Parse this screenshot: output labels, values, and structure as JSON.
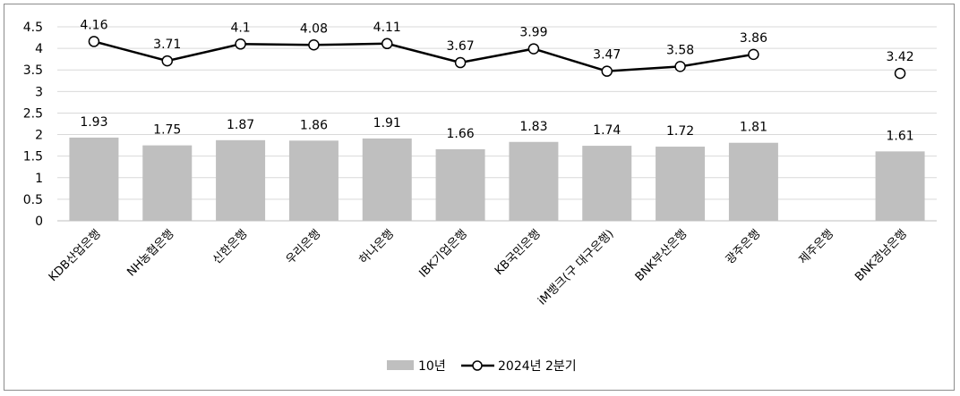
{
  "chart_data": {
    "type": "bar",
    "categories": [
      "KDB산업은행",
      "NH농협은행",
      "신한은행",
      "우리은행",
      "하나은행",
      "IBK기업은행",
      "KB국민은행",
      "iM뱅크(구 대구은행)",
      "BNK부산은행",
      "광주은행",
      "제주은행",
      "BNK경남은행"
    ],
    "series": [
      {
        "name": "10년",
        "kind": "bar",
        "color": "#bfbfbf",
        "values": [
          1.93,
          1.75,
          1.87,
          1.86,
          1.91,
          1.66,
          1.83,
          1.74,
          1.72,
          1.81,
          null,
          1.61
        ]
      },
      {
        "name": "2024년 2분기",
        "kind": "line",
        "color": "#000000",
        "values": [
          4.16,
          3.71,
          4.1,
          4.08,
          4.11,
          3.67,
          3.99,
          3.47,
          3.58,
          3.86,
          null,
          3.42
        ]
      }
    ],
    "bar_labels": [
      "1.93",
      "1.75",
      "1.87",
      "1.86",
      "1.91",
      "1.66",
      "1.83",
      "1.74",
      "1.72",
      "1.81",
      "",
      "1.61"
    ],
    "line_labels": [
      "4.16",
      "3.71",
      "4.1",
      "4.08",
      "4.11",
      "3.67",
      "3.99",
      "3.47",
      "3.58",
      "3.86",
      "",
      "3.42"
    ],
    "y_ticks": [
      "0",
      "0.5",
      "1",
      "1.5",
      "2",
      "2.5",
      "3",
      "3.5",
      "4",
      "4.5"
    ],
    "ylim": [
      0,
      4.5
    ],
    "grid": true,
    "legend_position": "bottom"
  }
}
